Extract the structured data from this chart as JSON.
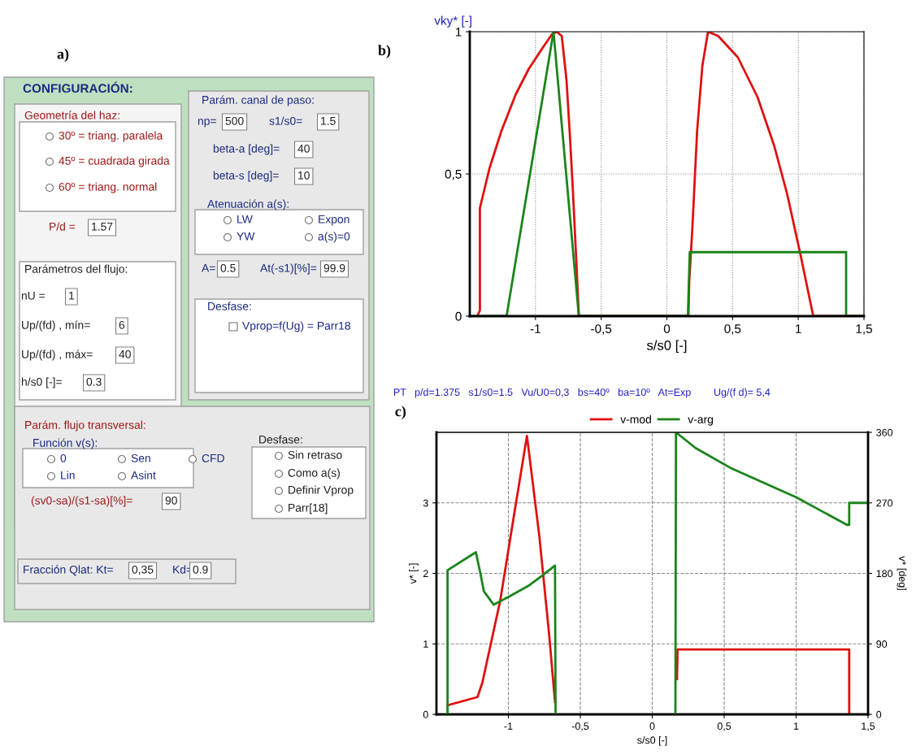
{
  "chart_data": [
    {
      "type": "other",
      "title": "a)",
      "annotations": [
        "CONFIGURACIÓN:",
        "Geometría del haz:",
        "30º = triang. paralela",
        "45º = cuadrada girada",
        "60º = triang. normal",
        "P/d =",
        "1.57",
        "Parámetros del flujo:",
        "nU =",
        "1",
        "Up/(fd) , mín=",
        "6",
        "Up/(fd) , máx=",
        "40",
        "h/s0 [-]=",
        "0.3",
        "Parám. canal de paso:",
        "np=",
        "500",
        "s1/s0=",
        "1.5",
        "beta-a [deg]=",
        "40",
        "beta-s [deg]=",
        "10",
        "Atenuación a(s):",
        "LW",
        "Expon",
        "YW",
        "a(s)=0",
        "A=",
        "0.5",
        "At(-s1)[%]=",
        "99.9",
        "Desfase:",
        "Vprop=f(Ug) = Parr18",
        "Parám. flujo transversal:",
        "Función v(s):",
        "0",
        "Sen",
        "CFD",
        "Lin",
        "Asint",
        "(sv0-sa)/(s1-sa)[%]=",
        "90",
        "Desfase:",
        "Sin retraso",
        "Como a(s)",
        "Definir Vprop",
        "Parr[18]",
        "Fracción Qlat: Kt=",
        "0,35",
        "Kd=",
        "0.9"
      ]
    },
    {
      "type": "line",
      "title": "b)",
      "xlabel": "s/s0 [-]",
      "ylabel": "vky* [-]",
      "xlim": [
        -1.5,
        1.5
      ],
      "ylim": [
        0,
        1
      ],
      "xticks": [
        {
          "value": -1,
          "label": "-1"
        },
        {
          "value": -0.5,
          "label": "-0,5"
        },
        0,
        {
          "value": 0.5,
          "label": "0,5"
        },
        1,
        {
          "value": 1.5,
          "label": "1,5"
        }
      ],
      "yticks": [
        0,
        {
          "value": 0.5,
          "label": "0,5"
        },
        1
      ],
      "grid": true,
      "series": [
        {
          "color": "#e01010",
          "x": [
            -1.443,
            -1.423,
            -1.423,
            -1.35,
            -1.26,
            -1.15,
            -1.05,
            -0.95,
            -0.876,
            -0.84,
            -0.8,
            -0.764,
            -0.74,
            -0.714,
            -0.69,
            -0.67,
            0.164,
            0.17,
            0.194,
            0.23,
            0.27,
            0.313,
            0.39,
            0.54,
            0.69,
            0.816,
            0.915,
            1.015,
            1.114,
            1.5
          ],
          "values": [
            0,
            0.02,
            0.38,
            0.52,
            0.65,
            0.78,
            0.87,
            0.94,
            0.99,
            1.0,
            0.985,
            0.83,
            0.65,
            0.43,
            0.2,
            0,
            0,
            0.12,
            0.31,
            0.65,
            0.88,
            1.0,
            0.985,
            0.91,
            0.77,
            0.6,
            0.43,
            0.22,
            0,
            0
          ]
        },
        {
          "color": "#1a841a",
          "x": [
            -1.5,
            -1.22,
            -0.863,
            -0.67,
            0.16,
            0.174,
            1.364,
            1.364,
            1.5
          ],
          "values": [
            0,
            0,
            1.0,
            0,
            0,
            0.225,
            0.225,
            0,
            0
          ]
        }
      ]
    },
    {
      "type": "line",
      "title": "c)",
      "subtitle": "PT   p/d=1.375   s1/s0=1.5   Vu/U0=0,3   bs=40º   ba=10º   At=Exp        Ug/(f d)= 5,4",
      "xlabel": "s/s0 [-]",
      "ylabel": "v* [-]",
      "y2label": "v* [deg]",
      "xlim": [
        -1.5,
        1.5
      ],
      "ylim": [
        0,
        4
      ],
      "y2lim": [
        0,
        360
      ],
      "xticks": [
        {
          "value": -1,
          "label": "-1"
        },
        {
          "value": -0.5,
          "label": "-0,5"
        },
        0,
        {
          "value": 0.5,
          "label": "0,5"
        },
        1,
        {
          "value": 1.5,
          "label": "1,5"
        }
      ],
      "yticks": [
        0,
        1,
        2,
        3
      ],
      "y2ticks": [
        0,
        90,
        180,
        270,
        360
      ],
      "grid": true,
      "legend": "top",
      "series": [
        {
          "name": "v-mod",
          "color": "#e01010",
          "x": [
            -1.423,
            -1.215,
            -1.181,
            -1.057,
            -0.966,
            -0.871,
            -0.785,
            -0.717,
            -0.676,
            0.0,
            0.172,
            0.176,
            1.369,
            1.369
          ],
          "values": [
            0.13,
            0.245,
            0.45,
            1.61,
            2.76,
            3.95,
            2.53,
            1.14,
            0.175,
            null,
            0.5,
            0.92,
            0.92,
            0
          ]
        },
        {
          "name": "v-arg",
          "color": "#1a841a",
          "axis": "y2",
          "x": [
            -1.423,
            -1.423,
            -1.226,
            -1.197,
            -1.17,
            -1.102,
            -0.989,
            -0.853,
            -0.762,
            -0.676,
            -0.672,
            0.0,
            0.161,
            0.165,
            0.301,
            0.55,
            1.002,
            1.353,
            1.369,
            1.369,
            1.5
          ],
          "values": [
            0,
            184,
            207,
            182,
            157,
            140,
            151,
            165,
            177.5,
            190,
            0,
            null,
            0,
            360,
            340,
            314,
            277,
            242,
            242,
            270,
            270
          ]
        }
      ]
    }
  ]
}
